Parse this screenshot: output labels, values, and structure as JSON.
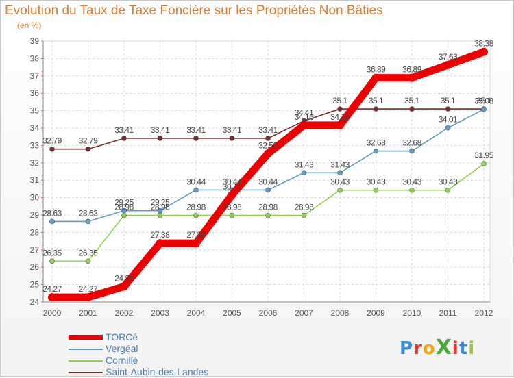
{
  "title": "Evolution du Taux de Taxe Foncière sur les Propriétés Non Bâties",
  "unit_label": "(en %)",
  "logo": {
    "text": "ProXiti",
    "letter_colors": [
      "#3a8fd6",
      "#e0372e",
      "#f0a21b",
      "#4aa83a",
      "#e0372e",
      "#3a8fd6",
      "#9bc53d"
    ]
  },
  "chart_data": {
    "type": "line",
    "title": "Evolution du Taux de Taxe Foncière sur les Propriétés Non Bâties",
    "ylabel": "(en %)",
    "xlabel": "",
    "ylim": [
      24,
      39
    ],
    "grid": true,
    "x": [
      "2000",
      "2001",
      "2002",
      "2003",
      "2004",
      "2005",
      "2006",
      "2007",
      "2008",
      "2009",
      "2010",
      "2011",
      "2012"
    ],
    "yticks": [
      "24",
      "25",
      "26",
      "27",
      "28",
      "29",
      "30",
      "31",
      "32",
      "33",
      "34",
      "35",
      "36",
      "37",
      "38",
      "39"
    ],
    "series": [
      {
        "name": "TORCé",
        "color": "#ee0000",
        "emphasis": true,
        "values": [
          24.27,
          24.27,
          24.89,
          27.38,
          27.38,
          30.16,
          32.53,
          34.16,
          34.16,
          36.89,
          36.89,
          37.63,
          38.38
        ],
        "labels": [
          "24.27",
          "24.27",
          "24.89",
          "27.38",
          "27.38",
          "30.16",
          "32.53",
          "34.16",
          "34.16",
          "36.89",
          "36.89",
          "37.63",
          "38.38"
        ]
      },
      {
        "name": "Vergéal",
        "color": "#5b9cc9",
        "emphasis": false,
        "values": [
          28.63,
          28.63,
          29.25,
          29.25,
          30.44,
          30.44,
          30.44,
          31.43,
          31.43,
          32.68,
          32.68,
          34.01,
          35.08
        ],
        "labels": [
          "28.63",
          "28.63",
          "29.25",
          "29.25",
          "30.44",
          "30.44",
          "30.44",
          "31.43",
          "31.43",
          "32.68",
          "32.68",
          "34.01",
          "35.08"
        ]
      },
      {
        "name": "Cornillé",
        "color": "#8fd14f",
        "emphasis": false,
        "values": [
          26.35,
          26.35,
          28.98,
          28.98,
          28.98,
          28.98,
          28.98,
          28.98,
          30.43,
          30.43,
          30.43,
          30.43,
          31.95
        ],
        "labels": [
          "26.35",
          "26.35",
          "28.98",
          "28.98",
          "28.98",
          "28.98",
          "28.98",
          "28.98",
          "30.43",
          "30.43",
          "30.43",
          "30.43",
          "31.95"
        ]
      },
      {
        "name": "Saint-Aubin-des-Landes",
        "color": "#7a2a2a",
        "emphasis": false,
        "values": [
          32.79,
          32.79,
          33.41,
          33.41,
          33.41,
          33.41,
          33.41,
          34.41,
          35.1,
          35.1,
          35.1,
          35.1,
          35.1
        ],
        "labels": [
          "32.79",
          "32.79",
          "33.41",
          "33.41",
          "33.41",
          "33.41",
          "33.41",
          "34.41",
          "35.1",
          "35.1",
          "35.1",
          "35.1",
          "35.1"
        ]
      }
    ]
  }
}
